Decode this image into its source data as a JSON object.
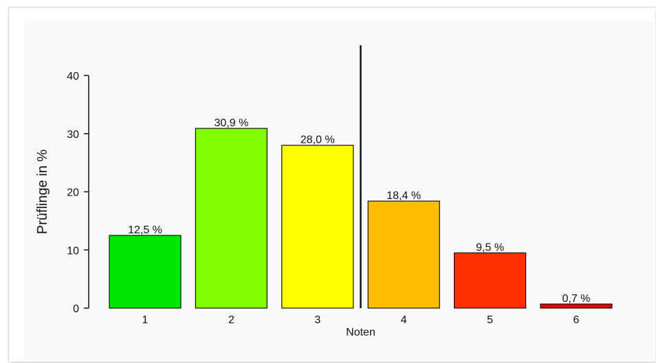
{
  "chart_data": {
    "type": "bar",
    "categories": [
      "1",
      "2",
      "3",
      "4",
      "5",
      "6"
    ],
    "values": [
      12.5,
      30.9,
      28.0,
      18.4,
      9.5,
      0.7
    ],
    "data_labels": [
      "12,5 %",
      "30,9 %",
      "28,0 %",
      "18,4 %",
      "9,5 %",
      "0,7 %"
    ],
    "colors": [
      "#00e600",
      "#80ff00",
      "#ffff00",
      "#ffbf00",
      "#ff3000",
      "#e60000"
    ],
    "xlabel": "Noten",
    "ylabel": "Prüflinge in %",
    "ylim": [
      0,
      40
    ],
    "yticks": [
      0,
      10,
      20,
      30,
      40
    ],
    "ytick_labels": [
      "0",
      "10",
      "20",
      "30",
      "40"
    ],
    "separator_between": [
      "3",
      "4"
    ],
    "grid": false,
    "legend": "none"
  }
}
